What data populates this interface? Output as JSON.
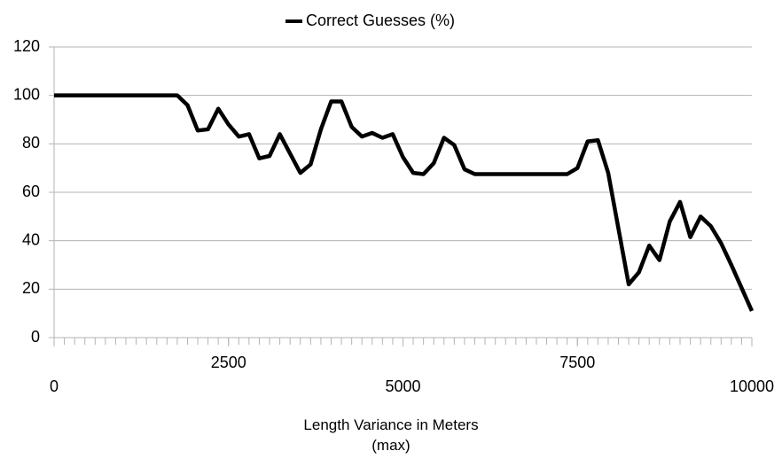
{
  "chart_data": {
    "type": "line",
    "xlabel": "Length Variance in Meters\n(max)",
    "x": [
      0,
      147,
      294,
      441,
      588,
      735,
      882,
      1029,
      1176,
      1324,
      1471,
      1618,
      1765,
      1912,
      2059,
      2206,
      2353,
      2500,
      2647,
      2794,
      2941,
      3088,
      3235,
      3382,
      3529,
      3676,
      3824,
      3971,
      4118,
      4265,
      4412,
      4559,
      4706,
      4853,
      5000,
      5147,
      5294,
      5441,
      5588,
      5735,
      5882,
      6029,
      6176,
      6324,
      6471,
      6618,
      6765,
      6912,
      7059,
      7206,
      7353,
      7500,
      7647,
      7794,
      7941,
      8088,
      8235,
      8382,
      8529,
      8676,
      8824,
      8971,
      9118,
      9265,
      9412,
      9559,
      9706,
      9853,
      10000
    ],
    "series": [
      {
        "name": "Correct Guesses (%)",
        "color": "#000000",
        "values": [
          100,
          100,
          100,
          100,
          100,
          100,
          100,
          100,
          100,
          100,
          100,
          100,
          100,
          96,
          85.5,
          86,
          94.5,
          88,
          83,
          84,
          74,
          75,
          84,
          76,
          68,
          71.5,
          86,
          97.5,
          97.5,
          87,
          83,
          84.5,
          82.5,
          84,
          74.5,
          68,
          67.5,
          72,
          82.5,
          79.5,
          69.5,
          67.5,
          67.5,
          67.5,
          67.5,
          67.5,
          67.5,
          67.5,
          67.5,
          67.5,
          67.5,
          70,
          81,
          81.5,
          68,
          45,
          22,
          27,
          38,
          32,
          48,
          56,
          41.5,
          50,
          46,
          39,
          30,
          20.5,
          11
        ]
      }
    ],
    "xlim": [
      0,
      10000
    ],
    "xticks": [
      0,
      2500,
      5000,
      7500,
      10000
    ],
    "ylim": [
      0,
      120
    ],
    "yticks": [
      0,
      20,
      40,
      60,
      80,
      100,
      120
    ],
    "grid": true,
    "legend": "top"
  }
}
